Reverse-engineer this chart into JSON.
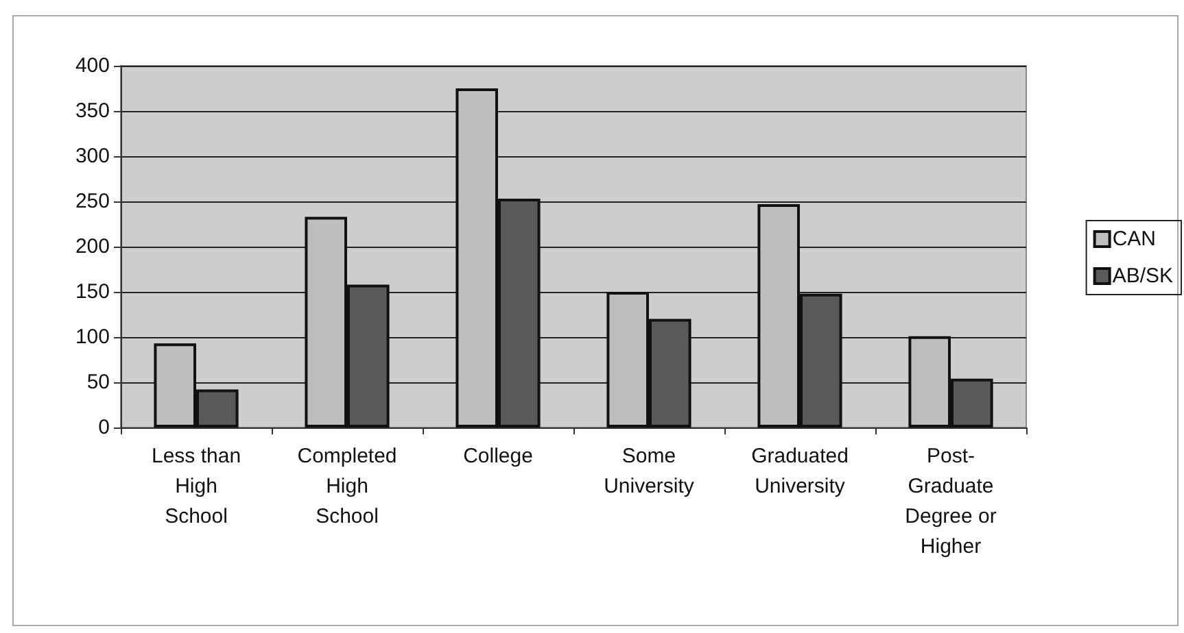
{
  "chart_data": {
    "type": "bar",
    "categories": [
      "Less than High School",
      "Completed High School",
      "College",
      "Some University",
      "Graduated University",
      "Post-Graduate Degree or Higher"
    ],
    "series": [
      {
        "name": "CAN",
        "color": "#bebebe",
        "values": [
          93,
          233,
          375,
          150,
          247,
          101
        ]
      },
      {
        "name": "AB/SK",
        "color": "#5a5a5a",
        "values": [
          42,
          158,
          253,
          120,
          148,
          54
        ]
      }
    ],
    "ylim": [
      0,
      400
    ],
    "yticks": [
      0,
      50,
      100,
      150,
      200,
      250,
      300,
      350,
      400
    ],
    "grid": "y",
    "legend": "right"
  }
}
